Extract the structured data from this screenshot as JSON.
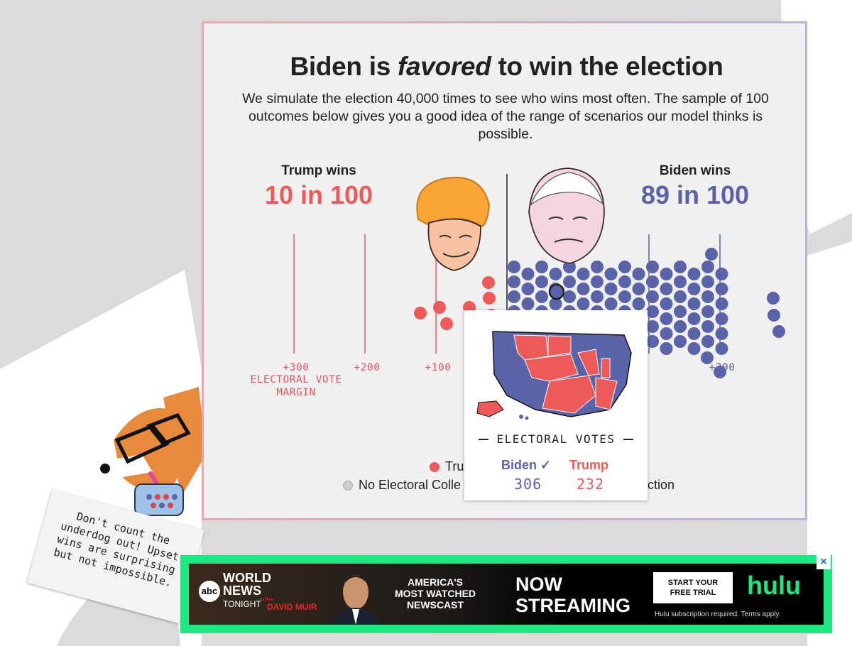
{
  "headline": {
    "prefix": "Biden is ",
    "emphasis": "favored",
    "suffix": " to win the election"
  },
  "subtitle": "We simulate the election 40,000 times to see who wins most often. The sample of 100 outcomes below gives you a good idea of the range of scenarios our model thinks is possible.",
  "trump": {
    "label": "Trump wins",
    "count": "10 in 100",
    "color": "#ee5a57"
  },
  "biden": {
    "label": "Biden wins",
    "count": "89 in 100",
    "color": "#5a63a8"
  },
  "axis": {
    "left": [
      "+300",
      "+200",
      "+100"
    ],
    "right": [
      "00",
      "+300"
    ],
    "caption_line1": "ELECTORAL VOTE",
    "caption_line2": "MARGIN"
  },
  "legend": {
    "trump_partial": "Tru",
    "no_winner_partial": "No Electoral Colle",
    "suffix_partial": "ction"
  },
  "tooltip": {
    "title": "ELECTORAL VOTES",
    "biden_label": "Biden ✓",
    "biden_votes": "306",
    "trump_label": "Trump",
    "trump_votes": "232"
  },
  "note": {
    "text": "Don't count the underdog out! Upset wins are surprising but not impossible."
  },
  "ad": {
    "logo_line1": "WORLD",
    "logo_line2": "NEWS",
    "logo_line3": "TONIGHT",
    "logo_with": "WITH",
    "anchor": "DAVID MUIR",
    "abc": "abc",
    "tagline_line1": "AMERICA'S",
    "tagline_line2": "MOST WATCHED",
    "tagline_line3": "NEWSCAST",
    "headline_line1": "NOW",
    "headline_line2": "STREAMING",
    "cta_line1": "START YOUR",
    "cta_line2": "FREE TRIAL",
    "brand": "hulu",
    "disclaimer": "Hulu subscription required. Terms apply.",
    "close_icon": "×"
  }
}
